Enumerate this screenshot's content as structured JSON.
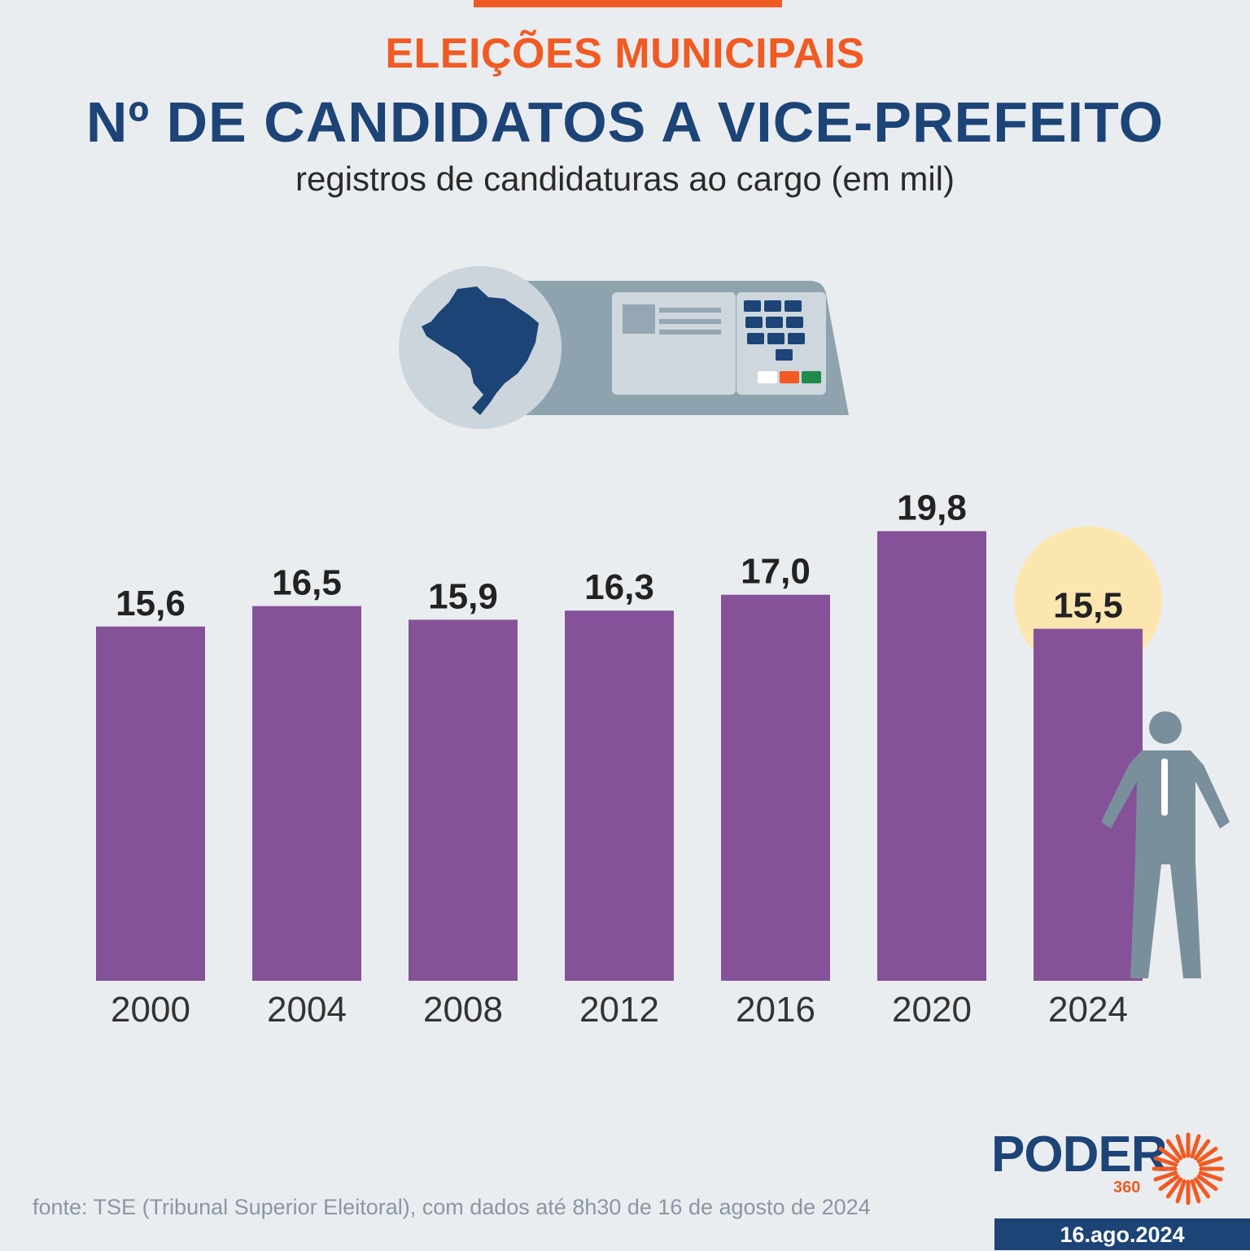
{
  "header": {
    "kicker": "ELEIÇÕES MUNICIPAIS",
    "title": "Nº DE CANDIDATOS A VICE-PREFEITO",
    "subtitle": "registros de candidaturas ao cargo (em mil)"
  },
  "chart_data": {
    "type": "bar",
    "title": "Nº DE CANDIDATOS A VICE-PREFEITO",
    "subtitle": "registros de candidaturas ao cargo (em mil)",
    "categories": [
      "2000",
      "2004",
      "2008",
      "2012",
      "2016",
      "2020",
      "2024"
    ],
    "values": [
      15.6,
      16.5,
      15.9,
      16.3,
      17.0,
      19.8,
      15.5
    ],
    "value_labels": [
      "15,6",
      "16,5",
      "15,9",
      "16,3",
      "17,0",
      "19,8",
      "15,5"
    ],
    "highlight_category": "2024",
    "xlabel": "",
    "ylabel": "",
    "ylim": [
      0,
      19.8
    ],
    "grid": false,
    "legend": "none"
  },
  "colors": {
    "bar": "#855299",
    "highlight": "#fce6b0",
    "accent": "#f15a22",
    "brand": "#1d4477",
    "icon_gray": "#7a8f9c"
  },
  "icons": [
    "ballot-box-icon",
    "brazil-map-icon",
    "person-icon",
    "sunburst-icon"
  ],
  "source": "fonte: TSE (Tribunal Superior Eleitoral), com dados até 8h30 de 16 de agosto de 2024",
  "logo": {
    "word": "PODER",
    "number": "360"
  },
  "date": "16.ago.2024"
}
